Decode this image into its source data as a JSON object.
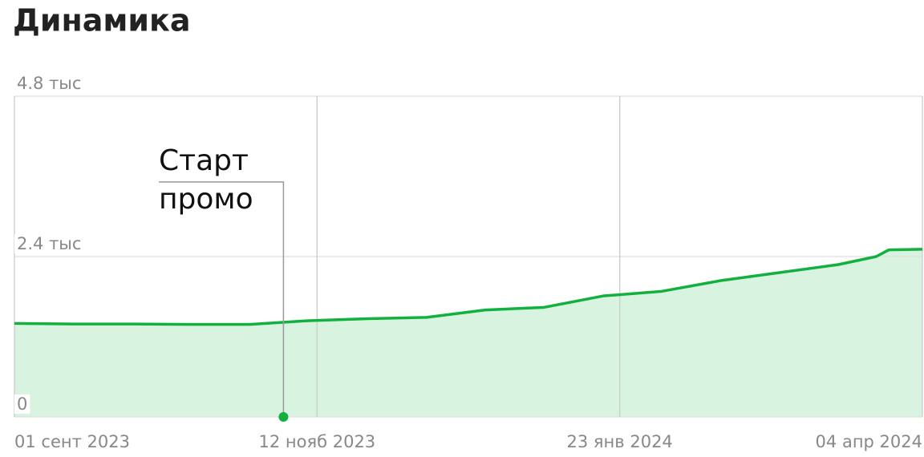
{
  "chart_data": {
    "type": "area",
    "title": "Динамика",
    "x": [
      "2023-09-01",
      "2023-09-15",
      "2023-09-29",
      "2023-10-13",
      "2023-10-27",
      "2023-11-10",
      "2023-11-24",
      "2023-12-08",
      "2023-12-22",
      "2024-01-05",
      "2024-01-19",
      "2024-02-02",
      "2024-02-16",
      "2024-03-01",
      "2024-03-15",
      "2024-03-24",
      "2024-03-27",
      "2024-04-04"
    ],
    "values": [
      1400,
      1390,
      1390,
      1385,
      1385,
      1440,
      1470,
      1490,
      1600,
      1640,
      1810,
      1880,
      2040,
      2160,
      2280,
      2400,
      2500,
      2510
    ],
    "color": "#12b13f",
    "fill": "#d9f3e1",
    "ylim": [
      0,
      4800
    ],
    "yticks": [
      0,
      {
        "value": 2400,
        "label": "2.4 тыс"
      },
      {
        "value": 4800,
        "label": "4.8 тыс"
      }
    ],
    "xlim": [
      "2023-09-01",
      "2024-04-04"
    ],
    "xticks": [
      {
        "value": "2023-09-01",
        "label": "01 сент 2023"
      },
      {
        "value": "2023-11-12",
        "label": "12 нояб 2023"
      },
      {
        "value": "2024-01-23",
        "label": "23 янв 2024"
      },
      {
        "value": "2024-04-04",
        "label": "04 апр 2024"
      }
    ],
    "grid": true,
    "annotation": {
      "lines": [
        "Старт",
        "промо"
      ],
      "x": "2023-11-04"
    }
  }
}
